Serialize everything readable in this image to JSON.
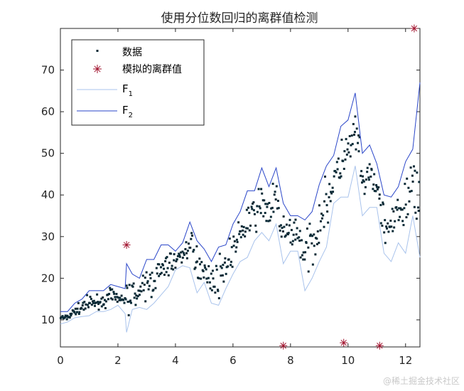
{
  "chart_data": {
    "type": "scatter",
    "title": "使用分位数回归的离群值检测",
    "xlabel": "",
    "ylabel": "",
    "xlim": [
      0,
      12.5
    ],
    "ylim": [
      3.5,
      80
    ],
    "xticks": [
      0,
      2,
      4,
      6,
      8,
      10,
      12
    ],
    "yticks": [
      10,
      20,
      30,
      40,
      50,
      60,
      70
    ],
    "grid": false,
    "legend_position": "top-left",
    "legend": [
      {
        "label": "数据",
        "marker": "square",
        "color": "#0b2a36"
      },
      {
        "label": "模拟的离群值",
        "marker": "asterisk",
        "color": "#a2142f"
      },
      {
        "label": "F",
        "sub": "1",
        "marker": "line",
        "color": "#a9c3ec"
      },
      {
        "label": "F",
        "sub": "2",
        "marker": "line",
        "color": "#2a46c9"
      }
    ],
    "colors": {
      "data": "#0b2a36",
      "outliers": "#a2142f",
      "f1": "#a9c3ec",
      "f2": "#2a46c9"
    },
    "series": [
      {
        "name": "F1",
        "color": "#a9c3ec",
        "points": [
          [
            0,
            9
          ],
          [
            0.25,
            9.5
          ],
          [
            0.5,
            10.5
          ],
          [
            0.75,
            10.8
          ],
          [
            1,
            11
          ],
          [
            1.25,
            12
          ],
          [
            1.5,
            12
          ],
          [
            1.75,
            12.5
          ],
          [
            2,
            13.5
          ],
          [
            2.25,
            11.5
          ],
          [
            2.3,
            7
          ],
          [
            2.5,
            12.5
          ],
          [
            2.75,
            13
          ],
          [
            3,
            12.5
          ],
          [
            3.25,
            14
          ],
          [
            3.5,
            16
          ],
          [
            3.75,
            18
          ],
          [
            4,
            22
          ],
          [
            4.25,
            23
          ],
          [
            4.5,
            22.5
          ],
          [
            4.75,
            16.5
          ],
          [
            5,
            19
          ],
          [
            5.25,
            14
          ],
          [
            5.5,
            13.5
          ],
          [
            5.75,
            17.5
          ],
          [
            6,
            21
          ],
          [
            6.25,
            24
          ],
          [
            6.5,
            25
          ],
          [
            6.75,
            29
          ],
          [
            7,
            31
          ],
          [
            7.25,
            29
          ],
          [
            7.5,
            33
          ],
          [
            7.75,
            23.5
          ],
          [
            8,
            26.5
          ],
          [
            8.25,
            26.5
          ],
          [
            8.5,
            17
          ],
          [
            8.75,
            20
          ],
          [
            9,
            24
          ],
          [
            9.25,
            27.5
          ],
          [
            9.5,
            38
          ],
          [
            9.75,
            39.5
          ],
          [
            10,
            39.5
          ],
          [
            10.25,
            47
          ],
          [
            10.5,
            35
          ],
          [
            10.75,
            37
          ],
          [
            11,
            37
          ],
          [
            11.25,
            26
          ],
          [
            11.5,
            24
          ],
          [
            11.75,
            28.5
          ],
          [
            12,
            26
          ],
          [
            12.25,
            35
          ],
          [
            12.5,
            25
          ]
        ]
      },
      {
        "name": "F2",
        "color": "#2a46c9",
        "points": [
          [
            0,
            12
          ],
          [
            0.25,
            12
          ],
          [
            0.5,
            14
          ],
          [
            0.75,
            15
          ],
          [
            1,
            17
          ],
          [
            1.25,
            17
          ],
          [
            1.5,
            17
          ],
          [
            1.75,
            18.5
          ],
          [
            2,
            18
          ],
          [
            2.25,
            17.5
          ],
          [
            2.3,
            23.5
          ],
          [
            2.5,
            21
          ],
          [
            2.75,
            20
          ],
          [
            3,
            24.5
          ],
          [
            3.25,
            24.5
          ],
          [
            3.5,
            28
          ],
          [
            3.75,
            28
          ],
          [
            4,
            26.5
          ],
          [
            4.25,
            28.5
          ],
          [
            4.5,
            33.5
          ],
          [
            4.75,
            29
          ],
          [
            5,
            27
          ],
          [
            5.25,
            24
          ],
          [
            5.5,
            27.5
          ],
          [
            5.75,
            28
          ],
          [
            6,
            33
          ],
          [
            6.25,
            36
          ],
          [
            6.5,
            41
          ],
          [
            6.75,
            41
          ],
          [
            7,
            46.5
          ],
          [
            7.25,
            42
          ],
          [
            7.5,
            46.5
          ],
          [
            7.75,
            38
          ],
          [
            8,
            35
          ],
          [
            8.25,
            35
          ],
          [
            8.5,
            34
          ],
          [
            8.75,
            36
          ],
          [
            9,
            42.5
          ],
          [
            9.25,
            47
          ],
          [
            9.5,
            49.5
          ],
          [
            9.75,
            56.5
          ],
          [
            10,
            58
          ],
          [
            10.25,
            64.5
          ],
          [
            10.5,
            50
          ],
          [
            10.75,
            52
          ],
          [
            11,
            47.5
          ],
          [
            11.25,
            40
          ],
          [
            11.5,
            39.5
          ],
          [
            11.75,
            42
          ],
          [
            12,
            48
          ],
          [
            12.25,
            51
          ],
          [
            12.5,
            67
          ]
        ]
      }
    ],
    "outliers": [
      [
        2.3,
        28
      ],
      [
        7.75,
        3.8
      ],
      [
        9.85,
        4.5
      ],
      [
        11.1,
        3.8
      ],
      [
        12.3,
        80
      ]
    ]
  },
  "watermark": "@稀土掘金技术社区"
}
